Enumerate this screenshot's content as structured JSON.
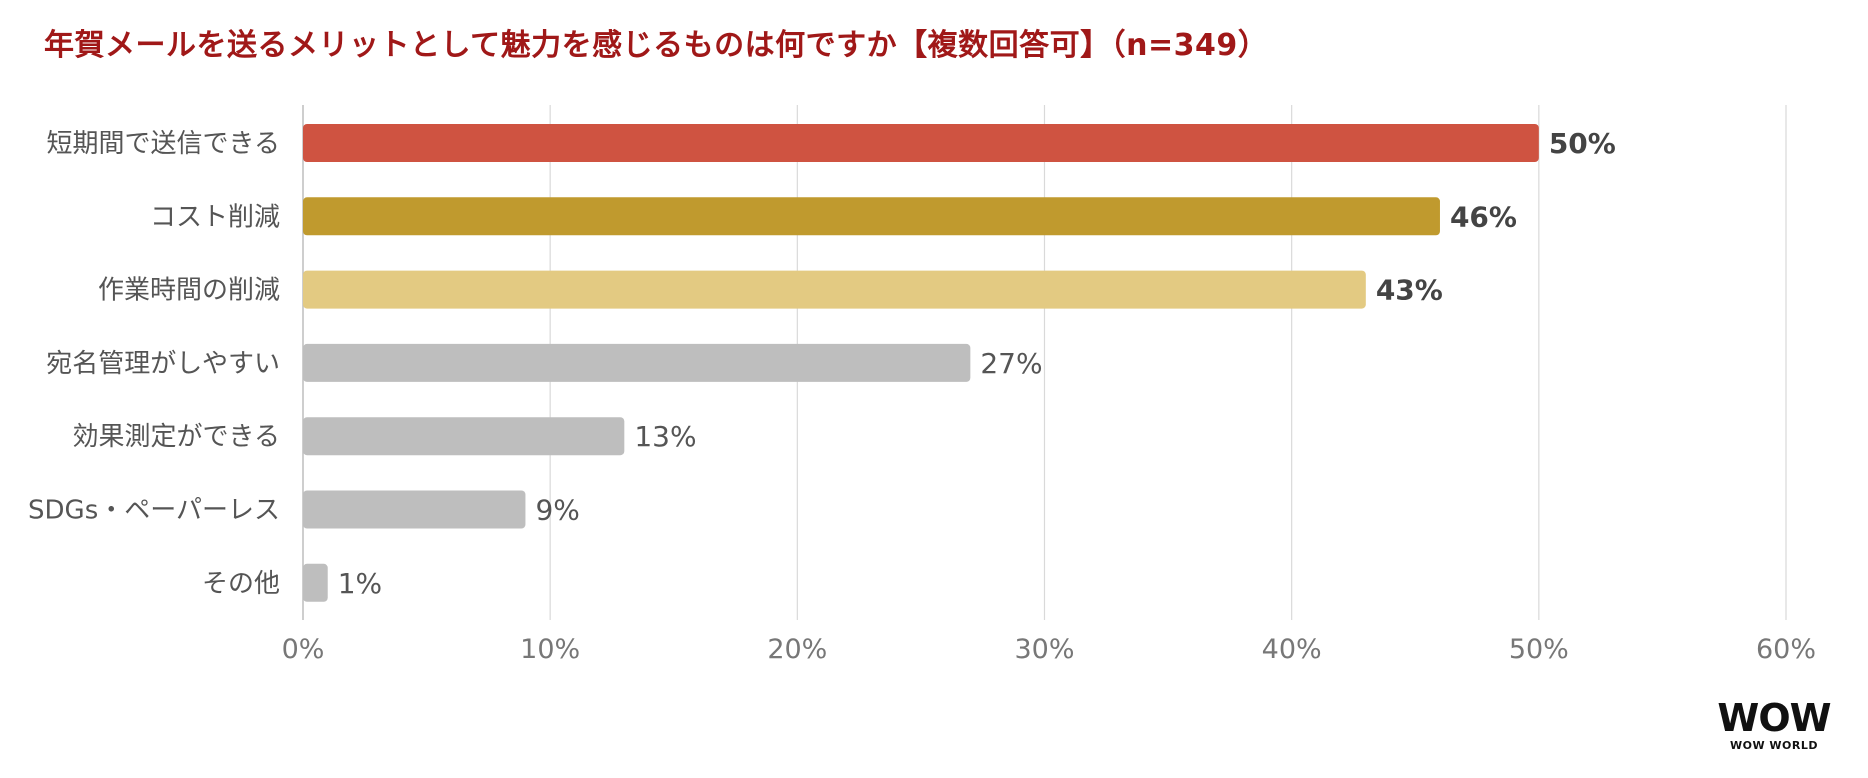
{
  "chart_data": {
    "type": "bar",
    "orientation": "horizontal",
    "title": "年賀メールを送るメリットとして魅力を感じるものは何ですか【複数回答可】（n=349）",
    "categories": [
      "短期間で送信できる",
      "コスト削減",
      "作業時間の削減",
      "宛名管理がしやすい",
      "効果測定ができる",
      "SDGs・ペーパーレス",
      "その他"
    ],
    "values": [
      50,
      46,
      43,
      27,
      13,
      9,
      1
    ],
    "value_labels": [
      "50%",
      "46%",
      "43%",
      "27%",
      "13%",
      "9%",
      "1%"
    ],
    "bar_colors": [
      "#cf5341",
      "#c09a2e",
      "#e3ca82",
      "#bebebe",
      "#bebebe",
      "#bebebe",
      "#bebebe"
    ],
    "highlight_label_color": "#444444",
    "label_color": "#555555",
    "xlim": [
      0,
      60
    ],
    "xticks": [
      0,
      10,
      20,
      30,
      40,
      50,
      60
    ],
    "xtick_labels": [
      "0%",
      "10%",
      "20%",
      "30%",
      "40%",
      "50%",
      "60%"
    ],
    "grid": true,
    "legend": "none"
  },
  "logo": {
    "mark": "WOW",
    "name": "WOW WORLD"
  }
}
